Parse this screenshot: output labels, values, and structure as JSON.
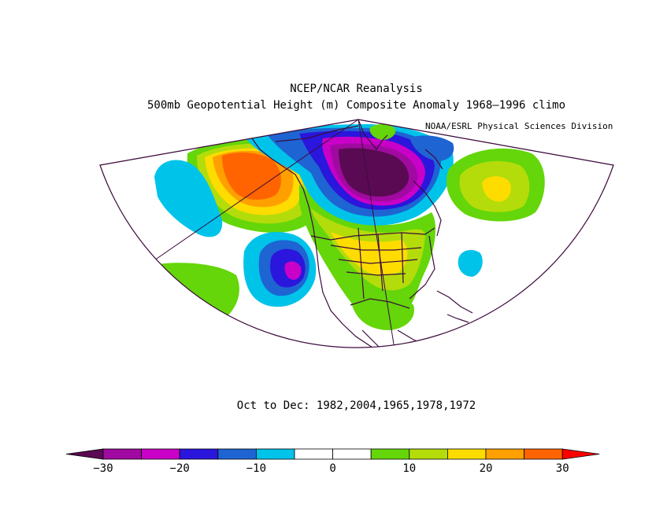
{
  "header": {
    "title": "NCEP/NCAR Reanalysis",
    "subtitle": "500mb Geopotential Height (m) Composite Anomaly 1968–1996 climo",
    "credit": "NOAA/ESRL Physical Sciences Division"
  },
  "footer": {
    "period": "Oct to Dec: 1982,2004,1965,1978,1972"
  },
  "colorbar": {
    "boundaries": [
      -30,
      -25,
      -20,
      -15,
      -10,
      -5,
      0,
      5,
      10,
      15,
      20,
      25,
      30
    ],
    "colors": [
      "#5a0a52",
      "#a00aa0",
      "#c800c8",
      "#2a16dc",
      "#1e64d2",
      "#00c3ea",
      "#ffffff",
      "#ffffff",
      "#64d60a",
      "#b4dc0a",
      "#ffdc00",
      "#ffa000",
      "#ff6400",
      "#ff0000"
    ],
    "tick_labels": [
      "−30",
      "−20",
      "−10",
      "0",
      "10",
      "20",
      "30"
    ]
  },
  "map": {
    "projection": "conic",
    "region": "North America / North Pacific / North Atlantic",
    "line_color": "#3c0a3c"
  }
}
